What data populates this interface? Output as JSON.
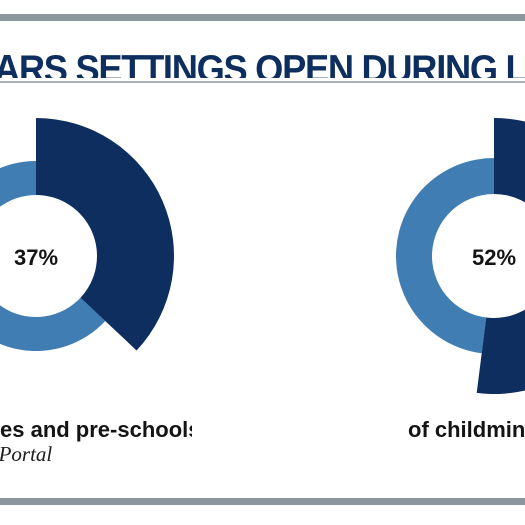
{
  "title": "ARS SETTINGS OPEN DURING LOC",
  "chart_data": {
    "type": "pie",
    "charts": [
      {
        "value_label": "37%",
        "value": 37,
        "caption": "es and pre-schools"
      },
      {
        "value_label": "52%",
        "value": 52,
        "caption": "of childmin"
      }
    ]
  },
  "colors": {
    "highlight": "#0d2e5e",
    "remainder": "#3f7db3",
    "title": "#0d2e5e",
    "rule": "#8c969c"
  },
  "source": "e Portal"
}
